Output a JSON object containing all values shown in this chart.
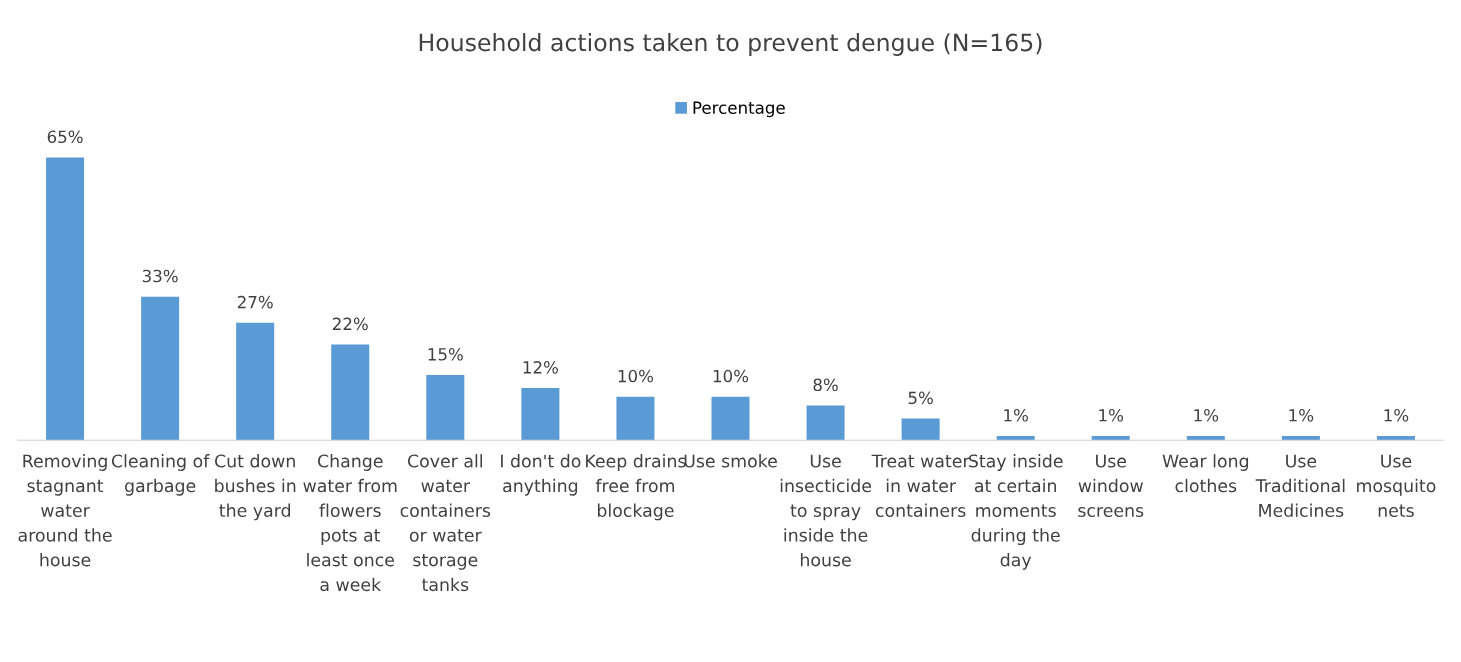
{
  "chart_data": {
    "type": "bar",
    "title": "Household actions taken to prevent dengue (N=165)",
    "categories": [
      "Removing\nstagnant\nwater\naround the\nhouse",
      "Cleaning of\ngarbage",
      "Cut down\nbushes in\nthe yard",
      "Change\nwater from\nflowers\npots at\nleast once\na week",
      "Cover all\nwater\ncontainers\nor water\nstorage\ntanks",
      "I don't do\nanything",
      "Keep drains\nfree from\nblockage",
      "Use smoke",
      "Use\ninsecticide\nto spray\ninside the\nhouse",
      "Treat water\nin water\ncontainers",
      "Stay inside\nat certain\nmoments\nduring the\nday",
      "Use\nwindow\nscreens",
      "Wear long\nclothes",
      "Use\nTraditional\nMedicines",
      "Use\nmosquito\nnets"
    ],
    "series": [
      {
        "name": "Percentage",
        "color": "#5b9bd5",
        "values": [
          65,
          33,
          27,
          22,
          15,
          12,
          10,
          10,
          8,
          5,
          1,
          1,
          1,
          1,
          1
        ],
        "value_labels": [
          "65%",
          "33%",
          "27%",
          "22%",
          "15%",
          "12%",
          "10%",
          "10%",
          "8%",
          "5%",
          "1%",
          "1%",
          "1%",
          "1%",
          "1%"
        ]
      }
    ],
    "legend": "top",
    "grid": false
  }
}
